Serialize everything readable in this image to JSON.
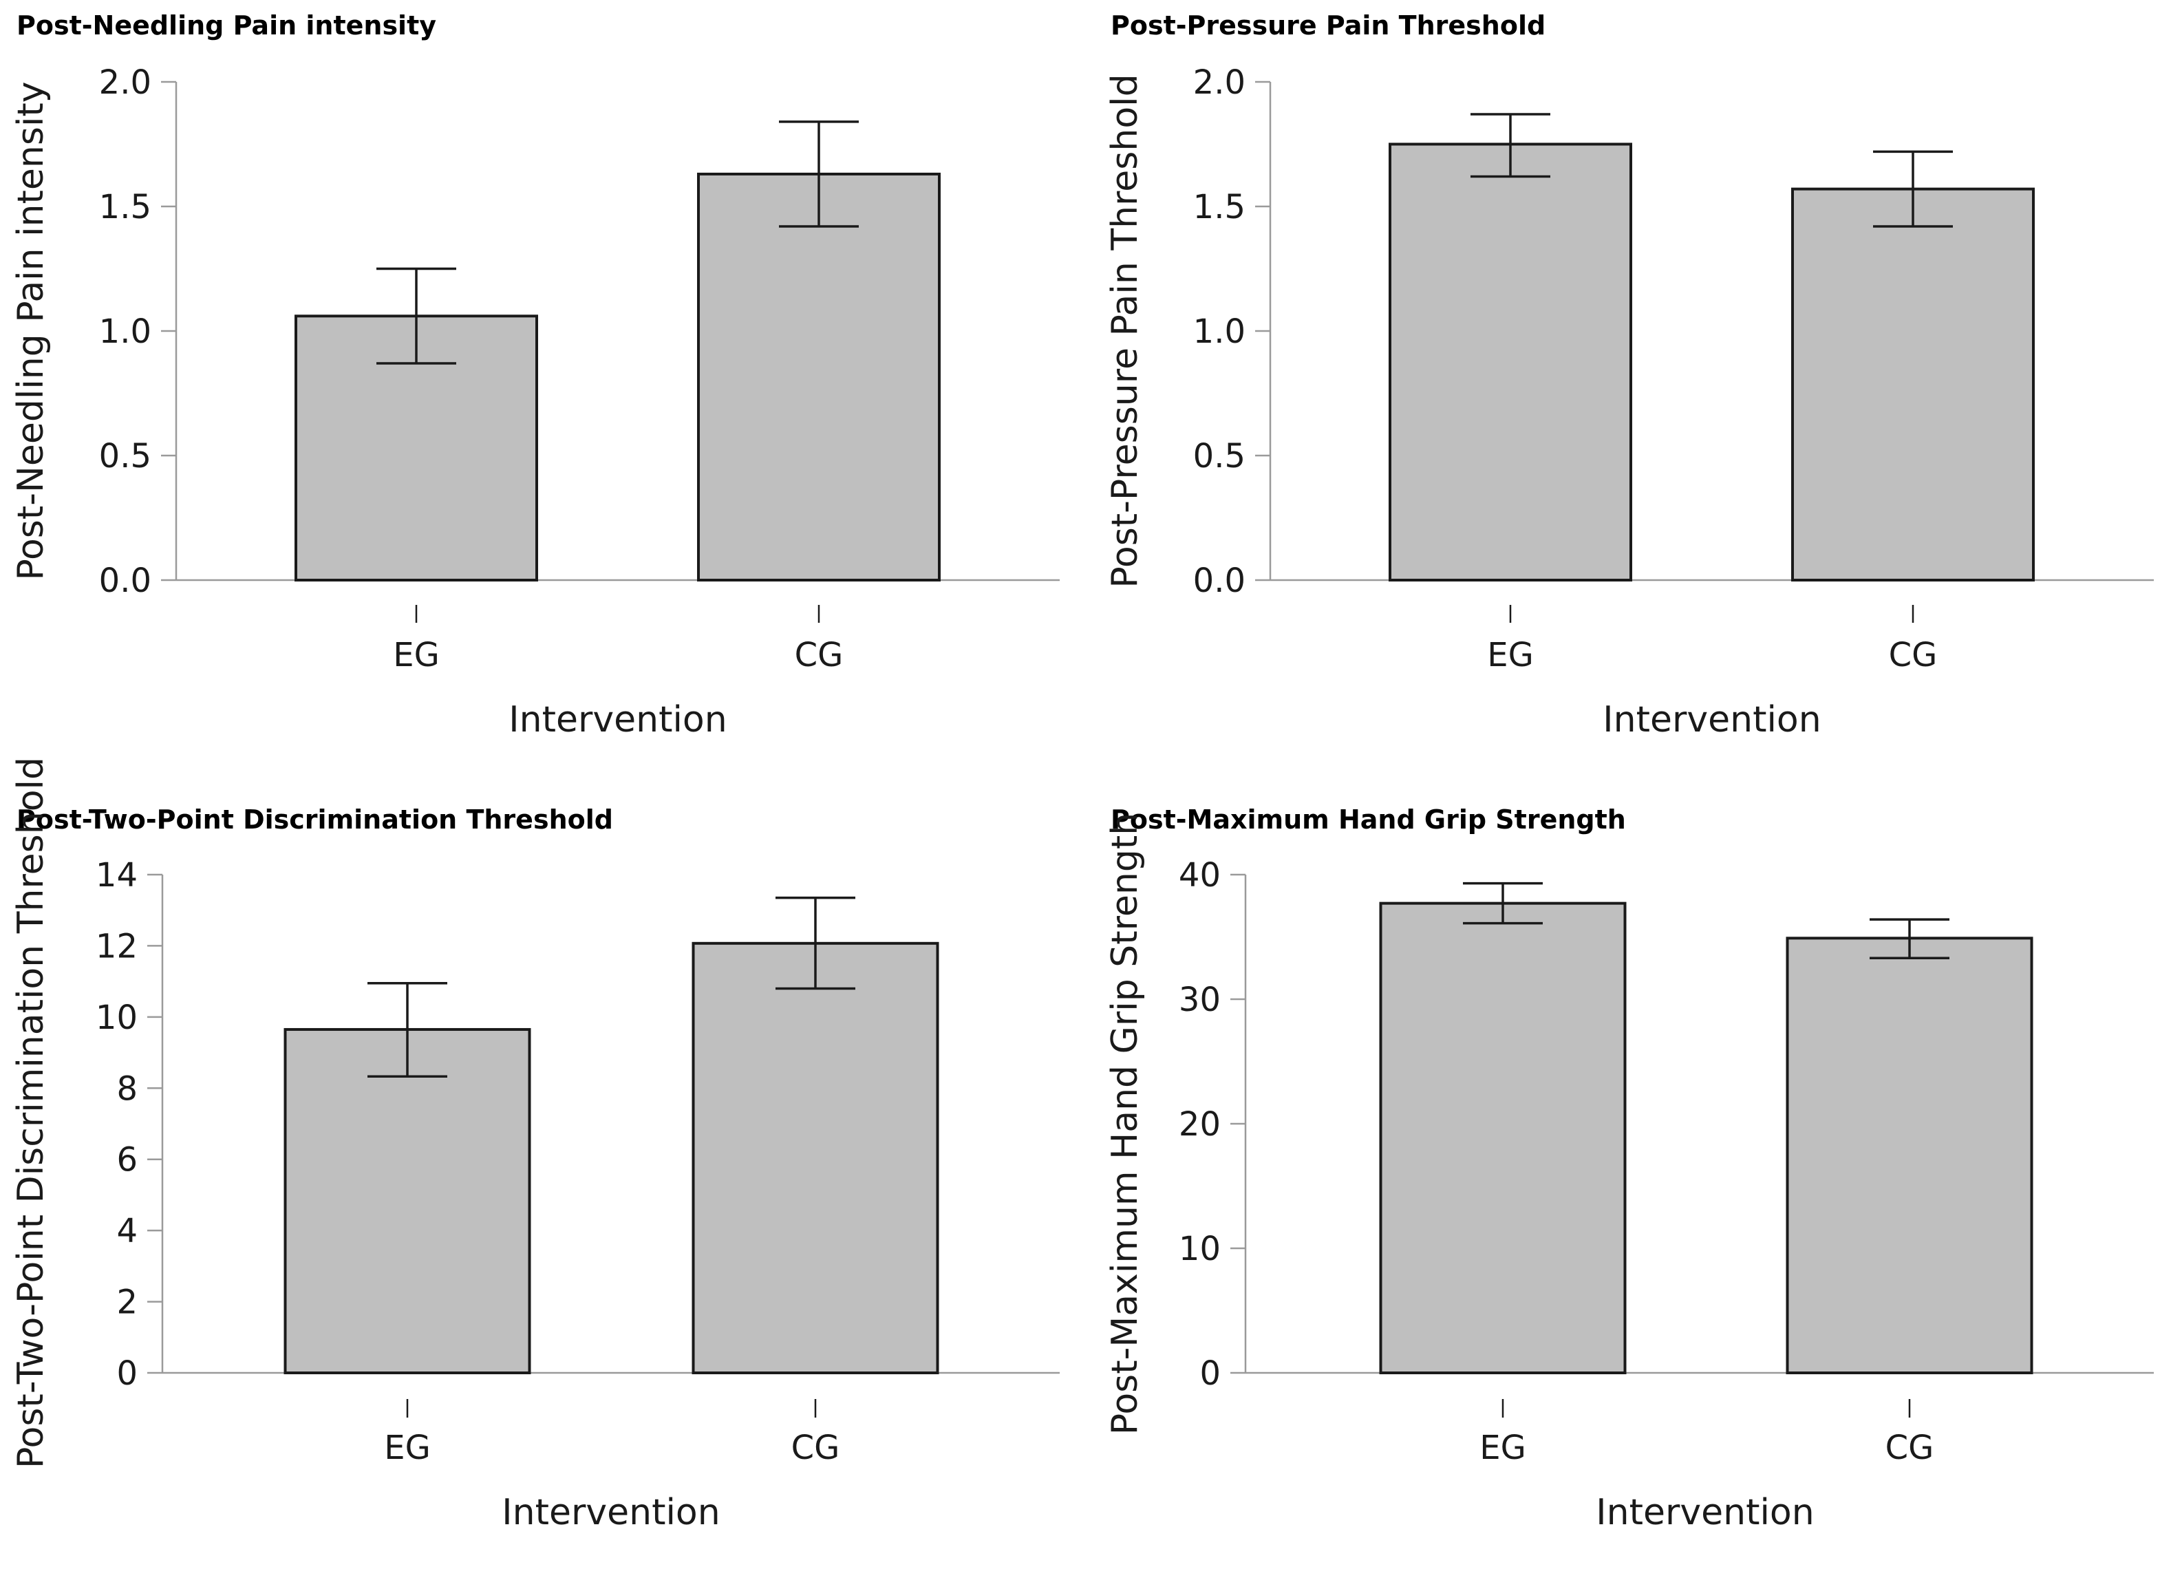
{
  "chart_data": [
    {
      "type": "bar",
      "title": "Post-Needling Pain intensity",
      "xlabel": "Intervention",
      "ylabel": "Post-Needling Pain intensity",
      "categories": [
        "EG",
        "CG"
      ],
      "values": [
        1.06,
        1.63
      ],
      "error_low": [
        0.87,
        1.42
      ],
      "error_high": [
        1.25,
        1.84
      ],
      "ylim": [
        0,
        2.0
      ],
      "yticks": [
        "0.0",
        "0.5",
        "1.0",
        "1.5",
        "2.0"
      ],
      "grid": false,
      "colors": {
        "bar": "#bfbfbf",
        "edge": "#1a1a1a"
      }
    },
    {
      "type": "bar",
      "title": "Post-Pressure Pain Threshold",
      "xlabel": "Intervention",
      "ylabel": "Post-Pressure Pain Threshold",
      "categories": [
        "EG",
        "CG"
      ],
      "values": [
        1.75,
        1.57
      ],
      "error_low": [
        1.62,
        1.42
      ],
      "error_high": [
        1.87,
        1.72
      ],
      "ylim": [
        0,
        2.0
      ],
      "yticks": [
        "0.0",
        "0.5",
        "1.0",
        "1.5",
        "2.0"
      ],
      "grid": false,
      "colors": {
        "bar": "#bfbfbf",
        "edge": "#1a1a1a"
      }
    },
    {
      "type": "bar",
      "title": "Post-Two-Point Discrimination Threshold",
      "xlabel": "Intervention",
      "ylabel": "Post-Two-Point Discrimination Threshold",
      "categories": [
        "EG",
        "CG"
      ],
      "values": [
        9.65,
        12.07
      ],
      "error_low": [
        8.33,
        10.8
      ],
      "error_high": [
        10.95,
        13.35
      ],
      "ylim": [
        0,
        14
      ],
      "yticks": [
        "0",
        "2",
        "4",
        "6",
        "8",
        "10",
        "12",
        "14"
      ],
      "grid": false,
      "colors": {
        "bar": "#bfbfbf",
        "edge": "#1a1a1a"
      }
    },
    {
      "type": "bar",
      "title": "Post-Maximum Hand Grip Strength",
      "xlabel": "Intervention",
      "ylabel": "Post-Maximum Hand Grip Strength",
      "categories": [
        "EG",
        "CG"
      ],
      "values": [
        37.7,
        34.9
      ],
      "error_low": [
        36.1,
        33.3
      ],
      "error_high": [
        39.3,
        36.4
      ],
      "ylim": [
        0,
        40
      ],
      "yticks": [
        "0",
        "10",
        "20",
        "30",
        "40"
      ],
      "grid": false,
      "colors": {
        "bar": "#bfbfbf",
        "edge": "#1a1a1a"
      }
    }
  ]
}
